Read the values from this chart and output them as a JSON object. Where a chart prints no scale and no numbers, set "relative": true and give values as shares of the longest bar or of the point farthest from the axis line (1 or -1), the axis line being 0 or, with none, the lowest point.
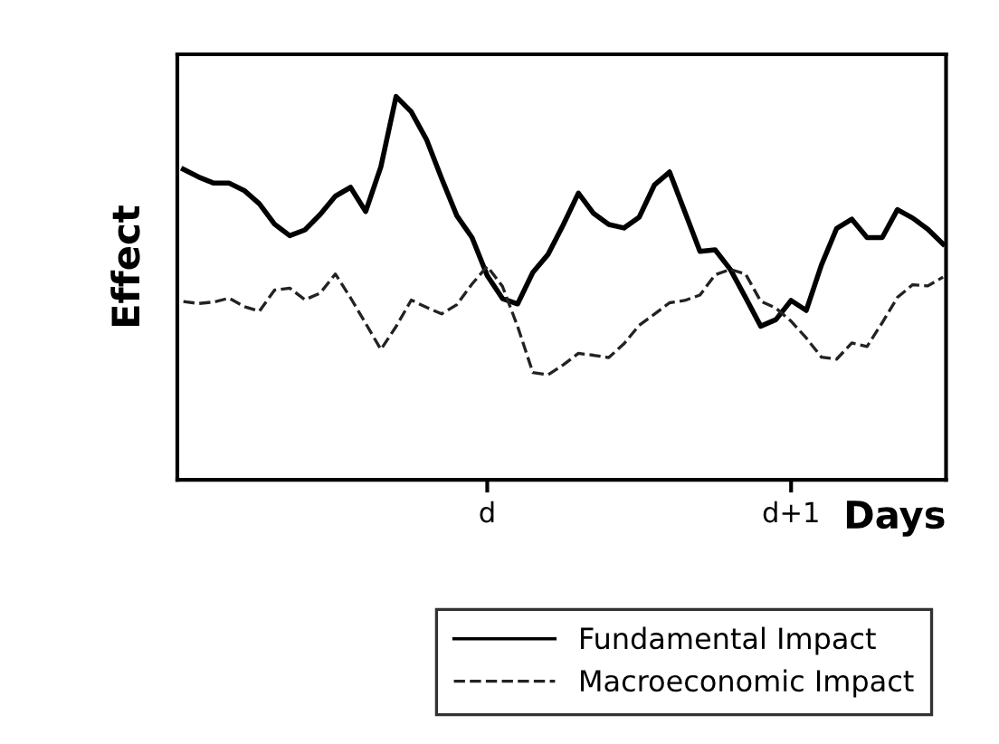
{
  "chart_data": {
    "type": "line",
    "relative": true,
    "xlabel": "Days",
    "ylabel": "Effect",
    "categories": [
      null,
      null,
      null,
      null,
      null,
      null,
      null,
      null,
      null,
      null,
      null,
      null,
      null,
      null,
      null,
      null,
      null,
      null,
      null,
      null,
      "d",
      null,
      null,
      null,
      null,
      null,
      null,
      null,
      null,
      null,
      null,
      null,
      null,
      null,
      null,
      null,
      null,
      null,
      null,
      null,
      "d+1",
      null,
      null,
      null,
      null,
      null,
      null,
      null,
      null,
      null,
      null
    ],
    "grid": false,
    "legend": "bottom",
    "marker": "none",
    "series": [
      {
        "name": "Fundamental Impact",
        "color": "#000000",
        "line_style": "solid",
        "values": [
          0.81,
          0.79,
          0.774,
          0.774,
          0.755,
          0.72,
          0.667,
          0.637,
          0.652,
          0.692,
          0.74,
          0.763,
          0.7,
          0.817,
          1.0,
          0.96,
          0.888,
          0.786,
          0.689,
          0.632,
          0.533,
          0.473,
          0.459,
          0.541,
          0.588,
          0.665,
          0.748,
          0.695,
          0.666,
          0.657,
          0.685,
          0.769,
          0.803,
          0.7,
          0.596,
          0.6,
          0.549,
          0.476,
          0.401,
          0.418,
          0.468,
          0.442,
          0.561,
          0.656,
          0.68,
          0.632,
          0.632,
          0.705,
          0.683,
          0.654,
          0.615
        ]
      },
      {
        "name": "Macroeconomic Impact",
        "color": "#222222",
        "line_style": "dashed",
        "values": [
          0.465,
          0.46,
          0.464,
          0.474,
          0.452,
          0.44,
          0.495,
          0.5,
          0.47,
          0.487,
          0.537,
          0.475,
          0.408,
          0.34,
          0.4,
          0.469,
          0.45,
          0.433,
          0.457,
          0.511,
          0.557,
          0.505,
          0.4,
          0.28,
          0.274,
          0.3,
          0.33,
          0.325,
          0.319,
          0.355,
          0.403,
          0.432,
          0.462,
          0.468,
          0.482,
          0.535,
          0.549,
          0.537,
          0.466,
          0.448,
          0.414,
          0.37,
          0.32,
          0.315,
          0.357,
          0.348,
          0.41,
          0.476,
          0.509,
          0.506,
          0.529
        ]
      }
    ]
  }
}
